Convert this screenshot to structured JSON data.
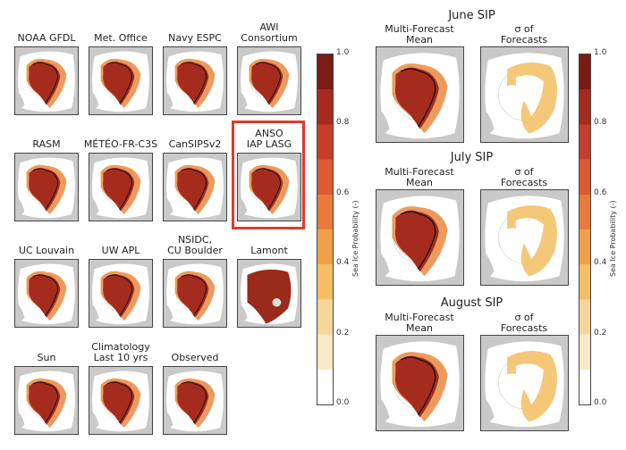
{
  "models": [
    {
      "label": "NOAA GFDL",
      "style": "mean"
    },
    {
      "label": "Met. Office",
      "style": "mean"
    },
    {
      "label": "Navy ESPC",
      "style": "mean"
    },
    {
      "label": "AWI\nConsortium",
      "style": "mean"
    },
    {
      "label": "RASM",
      "style": "mean"
    },
    {
      "label": "MÉTÉO-FR-C3S",
      "style": "mean"
    },
    {
      "label": "CanSIPSv2",
      "style": "mean"
    },
    {
      "label": "ANSO\nIAP LASG",
      "style": "mean",
      "highlighted": true
    },
    {
      "label": "UC Louvain",
      "style": "mean"
    },
    {
      "label": "UW APL",
      "style": "mean"
    },
    {
      "label": "NSIDC,\nCU Boulder",
      "style": "mean"
    },
    {
      "label": "Lamont",
      "style": "full"
    },
    {
      "label": "Sun",
      "style": "mean"
    },
    {
      "label": "Climatology\nLast 10 yrs",
      "style": "mean"
    },
    {
      "label": "Observed",
      "style": "mean"
    }
  ],
  "months": [
    {
      "title": "June SIP",
      "mean_label": "Multi-Forecast\nMean",
      "sigma_label": "σ of\nForecasts"
    },
    {
      "title": "July SIP",
      "mean_label": "Multi-Forecast\nMean",
      "sigma_label": "σ of\nForecasts"
    },
    {
      "title": "August SIP",
      "mean_label": "Multi-Forecast\nMean",
      "sigma_label": "σ of\nForecasts"
    }
  ],
  "colorbar": {
    "label": "Sea Ice Probability (-)",
    "ticks": [
      "1.0",
      "0.8",
      "0.6",
      "0.4",
      "0.2",
      "0.0"
    ],
    "colors": [
      "#ffffff",
      "#fbe9c7",
      "#f8d59a",
      "#f5bd66",
      "#f0a04a",
      "#e97a3c",
      "#dc5a32",
      "#c63e2a",
      "#a52b1f",
      "#7b1c14"
    ]
  },
  "highlight_color": "#e03a2c"
}
